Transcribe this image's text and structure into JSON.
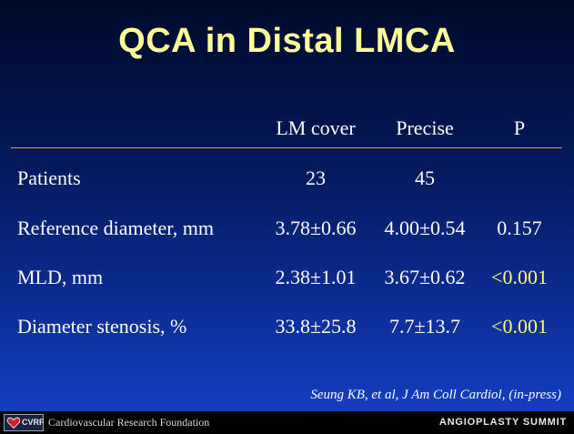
{
  "title": "QCA in Distal LMCA",
  "table": {
    "headers": [
      "LM cover",
      "Precise",
      "P"
    ],
    "rows": [
      {
        "label": "Patients",
        "lm_cover": "23",
        "precise": "45",
        "p": ""
      },
      {
        "label": "Reference diameter, mm",
        "lm_cover": "3.78±0.66",
        "precise": "4.00±0.54",
        "p": "0.157"
      },
      {
        "label": "MLD, mm",
        "lm_cover": "2.38±1.01",
        "precise": "3.67±0.62",
        "p": "<0.001"
      },
      {
        "label": "Diameter stenosis, %",
        "lm_cover": "33.8±25.8",
        "precise": "7.7±13.7",
        "p": "<0.001"
      }
    ]
  },
  "citation": "Seung KB, et al, J Am Coll Cardiol, (in-press)",
  "footer": {
    "logo_text": "CVRF",
    "logo_icon": "heart-icon",
    "foundation": "Cardiovascular Research Foundation",
    "summit": "ANGIOPLASTY SUMMIT"
  },
  "colors": {
    "title": "#ffff99",
    "significant": "#ffff66",
    "rule": "#d9a520",
    "background_top": "#000a2a",
    "background_bottom": "#1640c8"
  }
}
